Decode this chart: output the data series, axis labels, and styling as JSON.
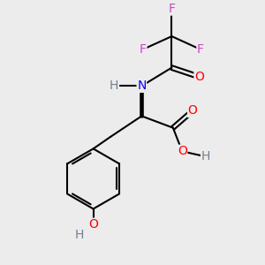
{
  "bg_color": "#ececec",
  "atom_colors": {
    "C": "#000000",
    "H": "#708090",
    "N": "#0000ff",
    "O": "#ff0000",
    "F": "#cc44cc"
  },
  "bond_color": "#000000",
  "bond_width": 1.5,
  "font_size": 10,
  "figsize": [
    3.0,
    3.0
  ],
  "dpi": 100,
  "xlim": [
    0,
    10
  ],
  "ylim": [
    0,
    10
  ]
}
